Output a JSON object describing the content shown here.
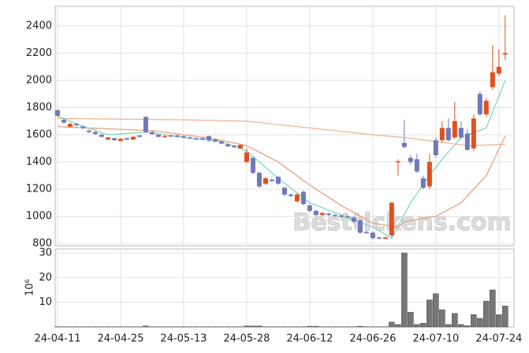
{
  "chart_data": {
    "type": "candlestick",
    "watermark": "Besttickens.com",
    "categories": [
      "24-04-11",
      null,
      null,
      null,
      null,
      null,
      null,
      null,
      null,
      null,
      "24-04-25",
      null,
      null,
      null,
      null,
      null,
      null,
      null,
      null,
      null,
      "24-05-13",
      null,
      null,
      null,
      null,
      null,
      null,
      null,
      null,
      null,
      "24-05-28",
      null,
      null,
      null,
      null,
      null,
      null,
      null,
      null,
      null,
      "24-06-12",
      null,
      null,
      null,
      null,
      null,
      null,
      null,
      null,
      null,
      "24-06-26",
      null,
      null,
      null,
      null,
      null,
      null,
      null,
      null,
      null,
      "24-07-10",
      null,
      null,
      null,
      null,
      null,
      null,
      null,
      null,
      null,
      "24-07-24",
      null
    ],
    "candles": [
      [
        1780,
        1790,
        1730,
        1740
      ],
      [
        1710,
        1720,
        1680,
        1690
      ],
      [
        1660,
        1690,
        1650,
        1680
      ],
      [
        1680,
        1690,
        1660,
        1670
      ],
      [
        1660,
        1670,
        1640,
        1650
      ],
      [
        1630,
        1640,
        1610,
        1620
      ],
      [
        1620,
        1630,
        1600,
        1605
      ],
      [
        1600,
        1610,
        1580,
        1585
      ],
      [
        1565,
        1585,
        1560,
        1580
      ],
      [
        1575,
        1580,
        1555,
        1560
      ],
      [
        1555,
        1575,
        1550,
        1570
      ],
      [
        1575,
        1580,
        1560,
        1565
      ],
      [
        1565,
        1590,
        1560,
        1585
      ],
      [
        1595,
        1600,
        1580,
        1585
      ],
      [
        1730,
        1740,
        1610,
        1620
      ],
      [
        1620,
        1630,
        1600,
        1605
      ],
      [
        1600,
        1605,
        1580,
        1585
      ],
      [
        1590,
        1600,
        1580,
        1590
      ],
      [
        1595,
        1600,
        1585,
        1590
      ],
      [
        1595,
        1600,
        1580,
        1585
      ],
      [
        1590,
        1595,
        1575,
        1580
      ],
      [
        1580,
        1590,
        1570,
        1575
      ],
      [
        1575,
        1580,
        1560,
        1570
      ],
      [
        1575,
        1580,
        1560,
        1565
      ],
      [
        1590,
        1595,
        1550,
        1560
      ],
      [
        1565,
        1570,
        1545,
        1550
      ],
      [
        1550,
        1555,
        1530,
        1535
      ],
      [
        1530,
        1540,
        1510,
        1515
      ],
      [
        1520,
        1525,
        1500,
        1510
      ],
      [
        1500,
        1530,
        1495,
        1525
      ],
      [
        1400,
        1500,
        1390,
        1470
      ],
      [
        1430,
        1440,
        1310,
        1320
      ],
      [
        1320,
        1330,
        1210,
        1220
      ],
      [
        1240,
        1290,
        1230,
        1280
      ],
      [
        1270,
        1280,
        1250,
        1260
      ],
      [
        1290,
        1300,
        1230,
        1240
      ],
      [
        1210,
        1220,
        1150,
        1160
      ],
      [
        1160,
        1170,
        1140,
        1150
      ],
      [
        1110,
        1170,
        1100,
        1160
      ],
      [
        1180,
        1190,
        1080,
        1090
      ],
      [
        1080,
        1090,
        1030,
        1040
      ],
      [
        1040,
        1050,
        1000,
        1010
      ],
      [
        1010,
        1030,
        1000,
        1025
      ],
      [
        1020,
        1030,
        1000,
        1010
      ],
      [
        1010,
        1020,
        995,
        1005
      ],
      [
        1005,
        1015,
        990,
        1000
      ],
      [
        1000,
        1010,
        985,
        995
      ],
      [
        990,
        1000,
        950,
        960
      ],
      [
        970,
        980,
        870,
        880
      ],
      [
        885,
        895,
        870,
        880
      ],
      [
        880,
        890,
        830,
        840
      ],
      [
        845,
        850,
        830,
        840
      ],
      [
        835,
        850,
        830,
        845
      ],
      [
        860,
        1110,
        850,
        1100
      ],
      [
        1400,
        1420,
        1300,
        1405
      ],
      [
        1540,
        1710,
        1500,
        1510
      ],
      [
        1430,
        1450,
        1380,
        1400
      ],
      [
        1420,
        1460,
        1320,
        1330
      ],
      [
        1280,
        1300,
        1200,
        1210
      ],
      [
        1220,
        1460,
        1200,
        1400
      ],
      [
        1560,
        1580,
        1430,
        1450
      ],
      [
        1560,
        1700,
        1540,
        1650
      ],
      [
        1650,
        1720,
        1550,
        1560
      ],
      [
        1580,
        1840,
        1570,
        1700
      ],
      [
        1650,
        1700,
        1570,
        1580
      ],
      [
        1610,
        1640,
        1480,
        1490
      ],
      [
        1500,
        1750,
        1480,
        1720
      ],
      [
        1900,
        1920,
        1740,
        1750
      ],
      [
        1750,
        1870,
        1730,
        1850
      ],
      [
        1950,
        2260,
        1930,
        2060
      ],
      [
        2050,
        2230,
        2030,
        2100
      ],
      [
        2190,
        2480,
        2150,
        2200
      ]
    ],
    "up_color": "#e0501e",
    "down_color": "#6f79b8",
    "moving_averages": [
      {
        "color": "#f0b898",
        "x": [
          0,
          10,
          20,
          30,
          40,
          50,
          55,
          60,
          65,
          71
        ],
        "values": [
          1720,
          1715,
          1710,
          1700,
          1650,
          1600,
          1580,
          1550,
          1520,
          1530
        ]
      },
      {
        "color": "#e8a080",
        "x": [
          0,
          5,
          10,
          15,
          20,
          25,
          30,
          35,
          40,
          45,
          50,
          54,
          55,
          60,
          64,
          68,
          71
        ],
        "values": [
          1660,
          1650,
          1640,
          1630,
          1600,
          1570,
          1520,
          1400,
          1230,
          1080,
          950,
          920,
          960,
          1000,
          1100,
          1300,
          1590
        ]
      },
      {
        "color": "#7fd8c0",
        "x": [
          0,
          3,
          8,
          14,
          20,
          26,
          30,
          35,
          40,
          45,
          50,
          53,
          56,
          59,
          61,
          64,
          68,
          71
        ],
        "values": [
          1740,
          1680,
          1600,
          1620,
          1580,
          1550,
          1480,
          1280,
          1100,
          1010,
          920,
          840,
          1100,
          1300,
          1420,
          1580,
          1650,
          2000
        ]
      }
    ],
    "xlim": [
      -0.375,
      72.4
    ],
    "ylim": [
      783,
      2545
    ],
    "yticks": [
      800,
      1000,
      1200,
      1400,
      1600,
      1800,
      2000,
      2200,
      2400
    ],
    "volume": {
      "y_label": "10⁶",
      "color": "#777777",
      "values": [
        0.1,
        0.1,
        0.1,
        0.1,
        0.1,
        0.1,
        0.1,
        0.1,
        0.1,
        0.1,
        0.1,
        0.1,
        0.1,
        0.1,
        0.4,
        0.1,
        0.1,
        0.1,
        0.1,
        0.1,
        0.1,
        0.1,
        0.1,
        0.1,
        0.1,
        0.1,
        0.1,
        0.1,
        0.1,
        0.1,
        0.4,
        0.4,
        0.4,
        0.1,
        0.1,
        0.1,
        0.1,
        0.1,
        0.1,
        0.1,
        0.3,
        0.3,
        0.1,
        0.1,
        0.1,
        0.1,
        0.1,
        0.1,
        0.3,
        0.1,
        0.1,
        0.1,
        0.1,
        2,
        1,
        30,
        6,
        1,
        1.5,
        11,
        13.5,
        7,
        1,
        5.5,
        1,
        0.5,
        5,
        3.5,
        10.5,
        15,
        5,
        8.5
      ],
      "ylim": [
        0,
        31.6
      ],
      "yticks": [
        10,
        20,
        30
      ]
    },
    "grid": true
  }
}
